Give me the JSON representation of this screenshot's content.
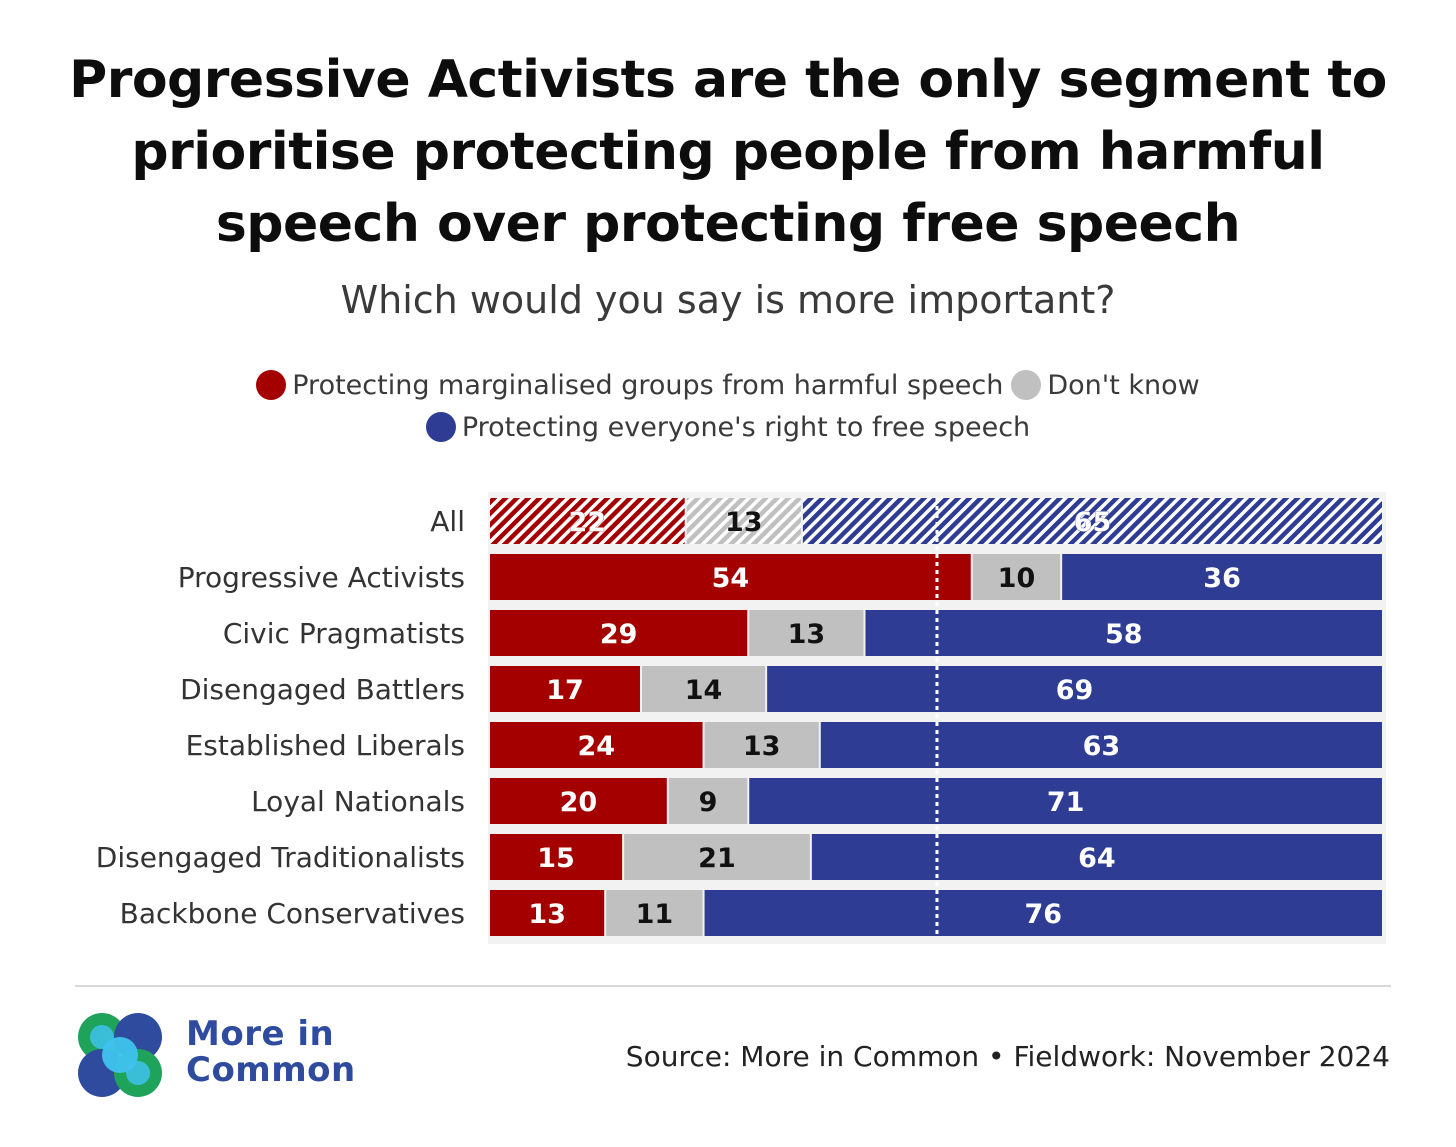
{
  "title": "Progressive Activists are the only segment to prioritise protecting people from harmful speech over protecting free speech",
  "subtitle": "Which would you say is more important?",
  "legend": {
    "harmful": "Protecting marginalised groups from harmful speech",
    "dont_know": "Don't know",
    "free_speech": "Protecting everyone's right to free speech"
  },
  "colors": {
    "harmful": "#a50000",
    "dont_know": "#c0c0c0",
    "free_speech": "#2e3c93",
    "midline": "#ffffff"
  },
  "chart_data": {
    "type": "bar",
    "orientation": "horizontal",
    "stacked": true,
    "x_range": [
      0,
      100
    ],
    "midline": 50,
    "categories": [
      "All",
      "Progressive Activists",
      "Civic Pragmatists",
      "Disengaged Battlers",
      "Established Liberals",
      "Loyal Nationals",
      "Disengaged Traditionalists",
      "Backbone Conservatives"
    ],
    "hatched_categories": [
      "All"
    ],
    "series": [
      {
        "name": "Protecting marginalised groups from harmful speech",
        "key": "harmful",
        "values": [
          22,
          54,
          29,
          17,
          24,
          20,
          15,
          13
        ]
      },
      {
        "name": "Don't know",
        "key": "dont_know",
        "values": [
          13,
          10,
          13,
          14,
          13,
          9,
          21,
          11
        ]
      },
      {
        "name": "Protecting everyone's right to free speech",
        "key": "free_speech",
        "values": [
          65,
          36,
          58,
          69,
          63,
          71,
          64,
          76
        ]
      }
    ]
  },
  "footer": {
    "brand_line1": "More in",
    "brand_line2": "Common",
    "source": "Source: More in Common • Fieldwork: November 2024"
  }
}
